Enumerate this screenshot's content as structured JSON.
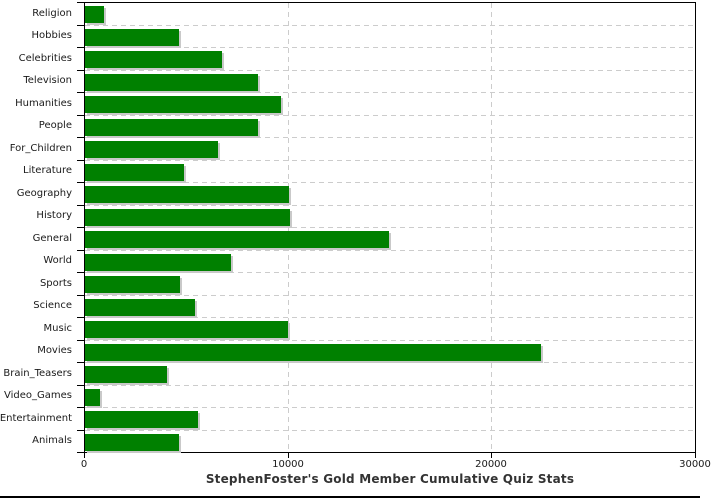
{
  "window": {
    "background_color": "#ffffff"
  },
  "chart_data": {
    "type": "bar",
    "orientation": "horizontal",
    "title": "StephenFoster's Gold Member Cumulative Quiz Stats",
    "categories": [
      "Religion",
      "Hobbies",
      "Celebrities",
      "Television",
      "Humanities",
      "People",
      "For_Children",
      "Literature",
      "Geography",
      "History",
      "General",
      "World",
      "Sports",
      "Science",
      "Music",
      "Movies",
      "Brain_Teasers",
      "Video_Games",
      "Entertainment",
      "Animals"
    ],
    "values": [
      930,
      4620,
      6730,
      8490,
      9620,
      8490,
      6530,
      4860,
      10020,
      10070,
      14920,
      7170,
      4660,
      5400,
      9970,
      22390,
      4030,
      740,
      5550,
      4620
    ],
    "xlabel": "",
    "ylabel": "",
    "xlim": [
      0,
      30000
    ],
    "x_ticks": [
      0,
      10000,
      20000,
      30000
    ],
    "x_tick_labels": [
      "0",
      "10000",
      "20000",
      "30000"
    ],
    "legend": "none",
    "grid": {
      "style": "dashed",
      "color": "#cccccc",
      "vertical_at": [
        10000,
        20000
      ],
      "horizontal": "between-every-category-row"
    },
    "bar_color": "#008000",
    "bar_shadow_color": "#c9c9c9",
    "axis_color": "#000000",
    "tick_label_color": "#1a1a1a",
    "title_color": "#333333"
  }
}
